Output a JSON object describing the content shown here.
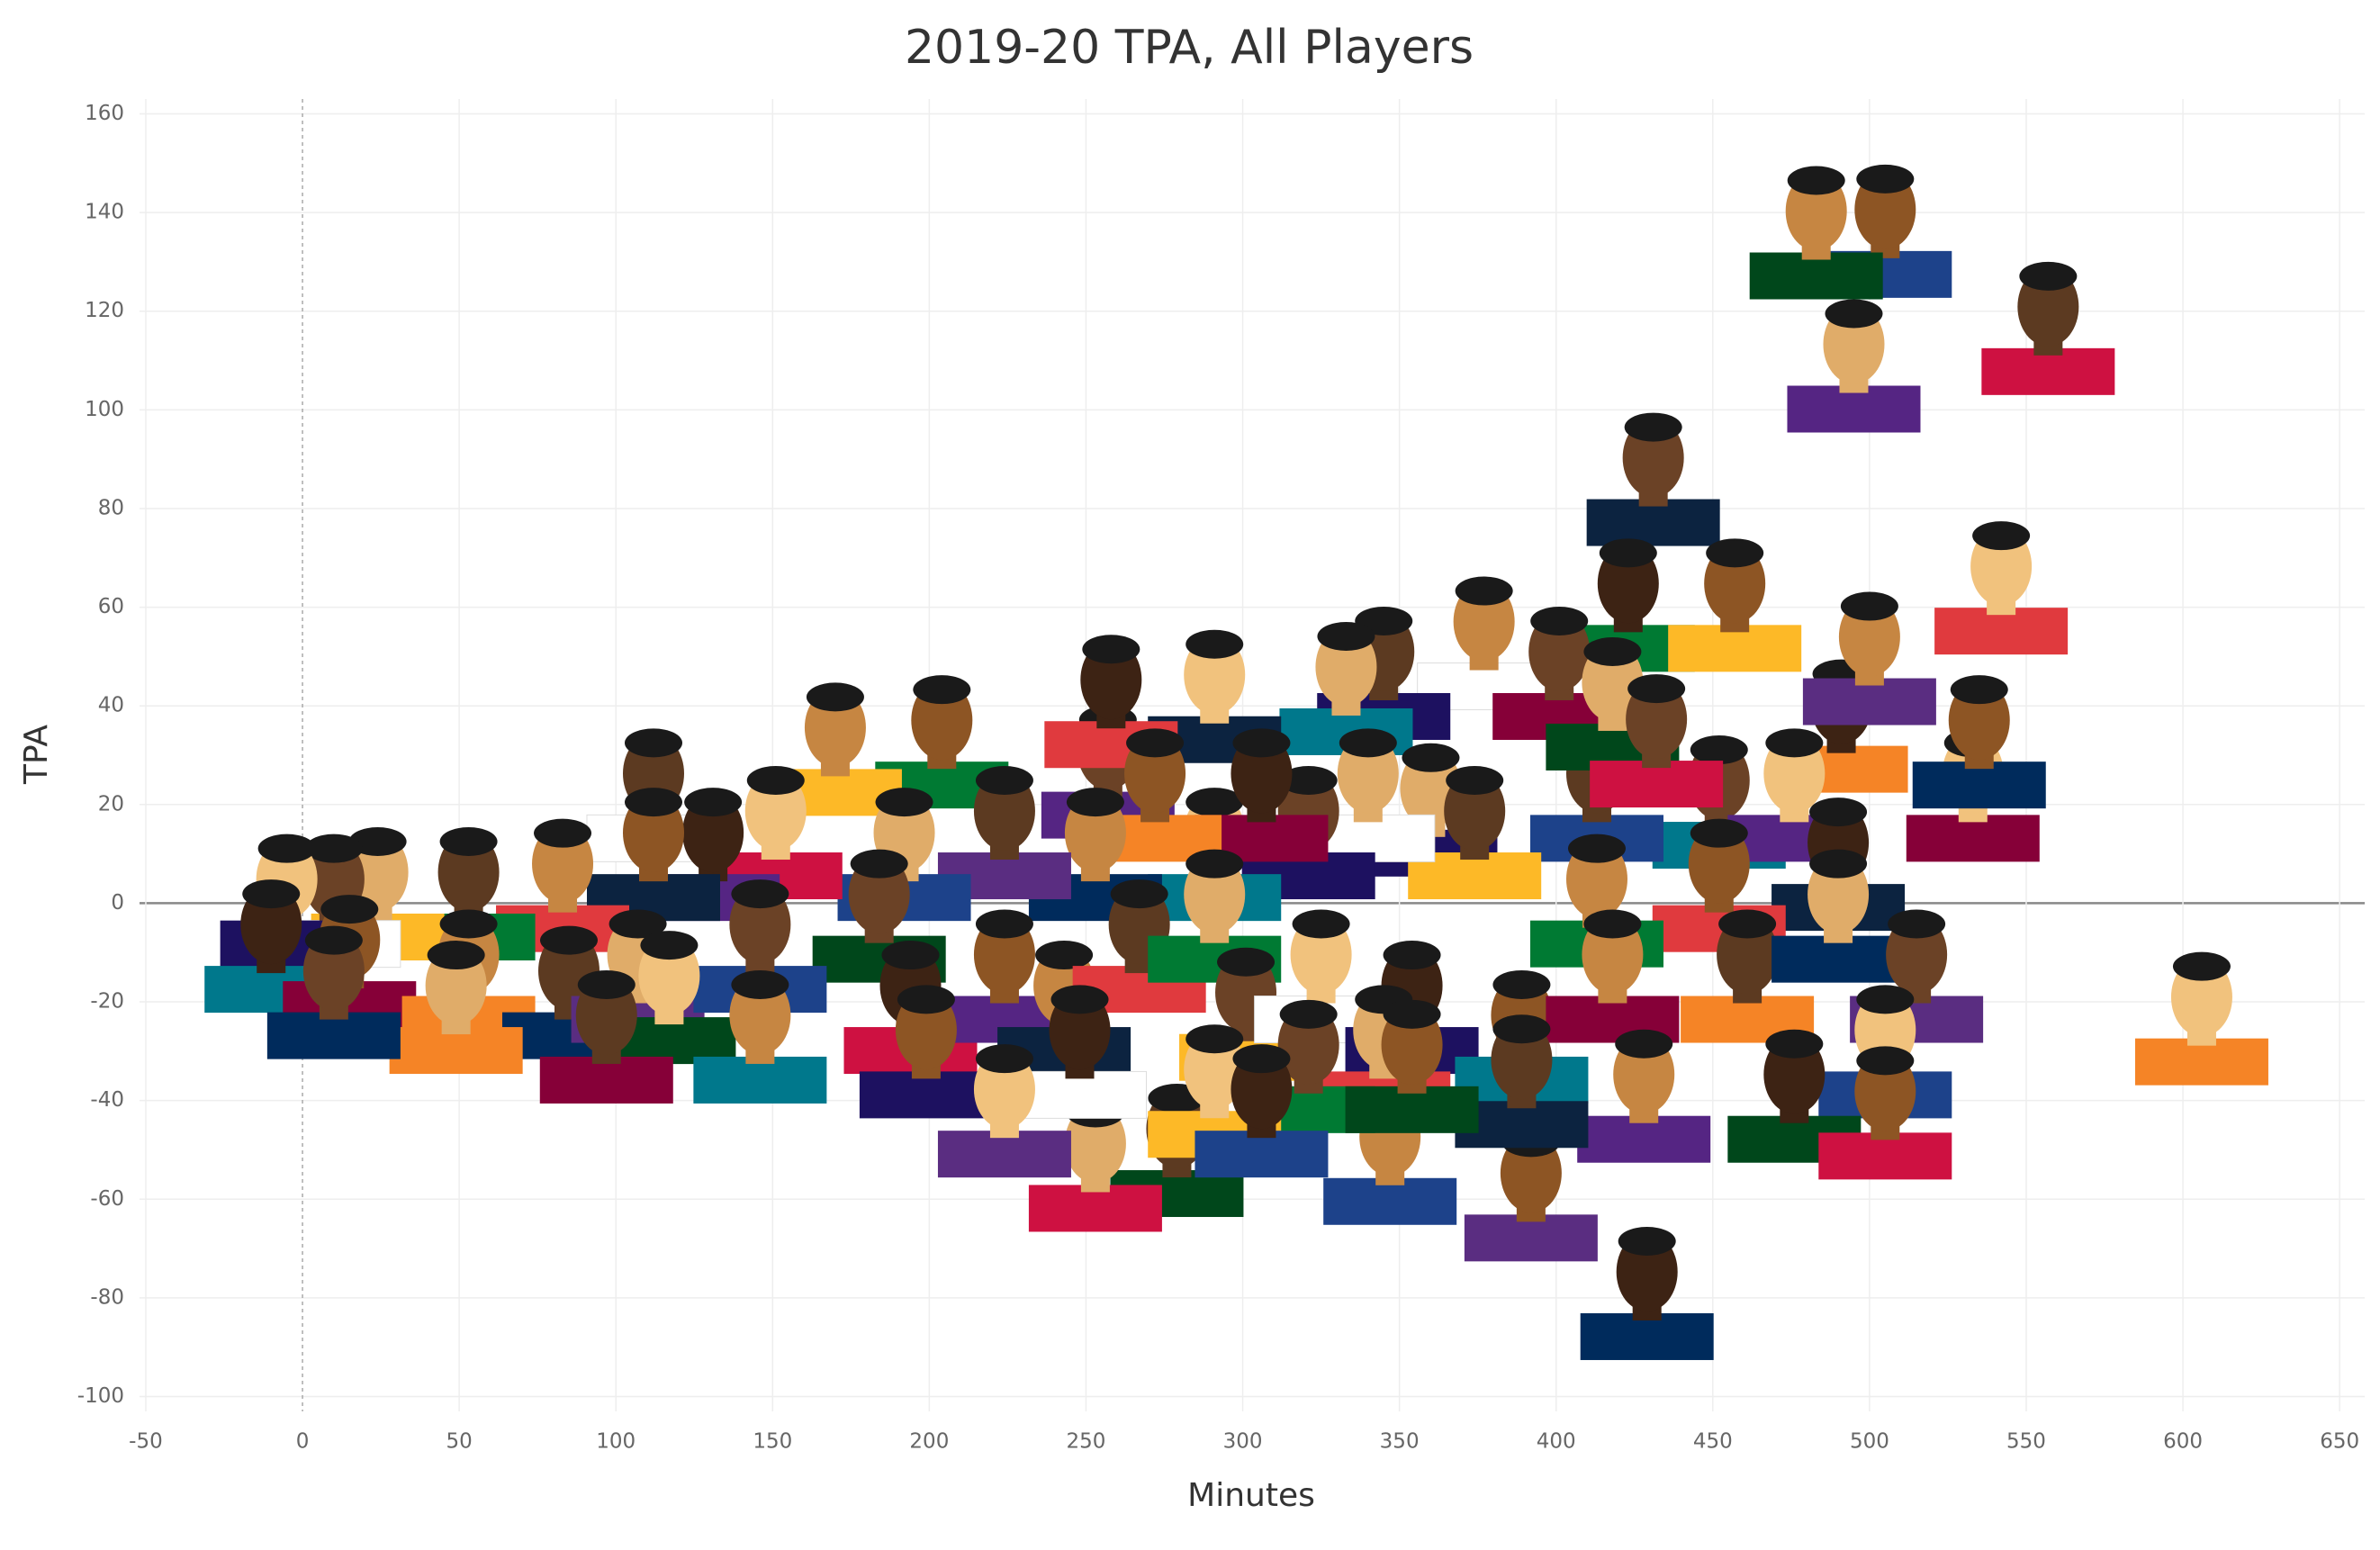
{
  "chart_data": {
    "type": "scatter",
    "title": "2019-20 TPA, All Players",
    "x_label": "Minutes",
    "y_label": "TPA",
    "xlim": [
      -52,
      658
    ],
    "ylim": [
      -103,
      163
    ],
    "xticks": [
      -50,
      0,
      50,
      100,
      150,
      200,
      250,
      300,
      350,
      400,
      450,
      500,
      550,
      600,
      650
    ],
    "yticks": [
      -100,
      -80,
      -60,
      -40,
      -20,
      0,
      20,
      40,
      60,
      80,
      100,
      120,
      140,
      160
    ],
    "grid": true,
    "palette": [
      "#1d428a",
      "#00471b",
      "#ce1141",
      "#552583",
      "#0c2340",
      "#e03a3e",
      "#007a33",
      "#fdb927",
      "#ffffff",
      "#1d1160",
      "#00788c",
      "#860038",
      "#f58426",
      "#002b5c",
      "#5a2d81"
    ],
    "series": [
      {
        "x": [
          505,
          483,
          557,
          495,
          431,
          542,
          423,
          457,
          377,
          345,
          333,
          401,
          606,
          429,
          392,
          347,
          279,
          253,
          257,
          291,
          258,
          204,
          170,
          112,
          360,
          452,
          533,
          491,
          535,
          500,
          413,
          418,
          432,
          476,
          490,
          452,
          413,
          374,
          340,
          321,
          291,
          306,
          272,
          253,
          224,
          192,
          184,
          151,
          131,
          112,
          83,
          53,
          24,
          10,
          -5,
          -10,
          15,
          53,
          85,
          107,
          146,
          117,
          194,
          224,
          243,
          267,
          291,
          301,
          325,
          354,
          389,
          418,
          461,
          490,
          515,
          505,
          476,
          505,
          428,
          389,
          345,
          321,
          291,
          248,
          199,
          146,
          97,
          49,
          10,
          224,
          306,
          354
        ],
        "values": [
          137.3,
          137,
          117.6,
          110,
          87,
          65,
          61.5,
          61.5,
          53.8,
          47.7,
          44.6,
          47.7,
          -22.3,
          -78,
          -58,
          -50.6,
          -49,
          -52,
          27.7,
          43,
          42,
          33.8,
          32.3,
          23,
          20,
          21.6,
          23,
          37,
          33.8,
          50.7,
          23,
          41.5,
          34,
          23,
          9,
          4.7,
          1.6,
          15.4,
          23,
          15.4,
          11,
          23,
          23,
          11,
          15.4,
          11,
          -1.5,
          15.4,
          11,
          11,
          4.7,
          3,
          3,
          1.6,
          1.6,
          -7.6,
          -10.7,
          -13.7,
          -17,
          -13.7,
          -7.6,
          -18,
          -20,
          -13.7,
          -20,
          -7.6,
          -1.5,
          -21.4,
          -13.7,
          -20,
          -26,
          -13.7,
          -13.7,
          -1.5,
          -13.7,
          -29,
          -38,
          -41.4,
          -38,
          -35,
          -29,
          -32,
          -37,
          -29,
          -29,
          -26,
          -26,
          -20,
          -17,
          -41,
          -41,
          -32
        ]
      }
    ]
  }
}
